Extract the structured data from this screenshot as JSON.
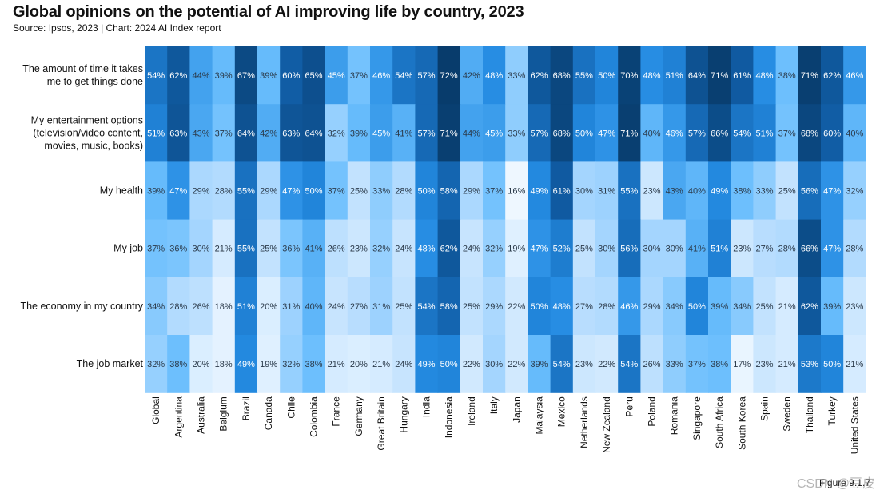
{
  "header": {
    "title": "Global opinions on the potential of AI improving life by country, 2023",
    "subtitle": "Source: Ipsos, 2023 | Chart: 2024 AI Index report"
  },
  "footer": {
    "figure_label": "Figure 9.1.7",
    "watermark": "CSDN @豆皮"
  },
  "colors": {
    "scale_low": "#eef7ff",
    "scale_high": "#083c6c",
    "text_dark": "#2b3a4a",
    "text_light": "#ffffff"
  },
  "chart_data": {
    "type": "heatmap",
    "title": "Global opinions on the potential of AI improving life by country, 2023",
    "value_format": "percent",
    "x_categories": [
      "Global",
      "Argentina",
      "Australia",
      "Belgium",
      "Brazil",
      "Canada",
      "Chile",
      "Colombia",
      "France",
      "Germany",
      "Great Britain",
      "Hungary",
      "India",
      "Indonesia",
      "Ireland",
      "Italy",
      "Japan",
      "Malaysia",
      "Mexico",
      "Netherlands",
      "New Zealand",
      "Peru",
      "Poland",
      "Romania",
      "Singapore",
      "South Africa",
      "South Korea",
      "Spain",
      "Sweden",
      "Thailand",
      "Turkey",
      "United States"
    ],
    "y_categories": [
      [
        "The amount of time it takes",
        "me to get things done"
      ],
      [
        "My entertainment options",
        "(television/video content,",
        "movies, music, books)"
      ],
      [
        "My health"
      ],
      [
        "My job"
      ],
      [
        "The economy in my country"
      ],
      [
        "The job market"
      ]
    ],
    "values": [
      [
        54,
        62,
        44,
        39,
        67,
        39,
        60,
        65,
        45,
        37,
        46,
        54,
        57,
        72,
        42,
        48,
        33,
        62,
        68,
        55,
        50,
        70,
        48,
        51,
        64,
        71,
        61,
        48,
        38,
        71,
        62,
        46
      ],
      [
        51,
        63,
        43,
        37,
        64,
        42,
        63,
        64,
        32,
        39,
        45,
        41,
        57,
        71,
        44,
        45,
        33,
        57,
        68,
        50,
        47,
        71,
        40,
        46,
        57,
        66,
        54,
        51,
        37,
        68,
        60,
        40
      ],
      [
        39,
        47,
        29,
        28,
        55,
        29,
        47,
        50,
        37,
        25,
        33,
        28,
        50,
        58,
        29,
        37,
        16,
        49,
        61,
        30,
        31,
        55,
        23,
        43,
        40,
        49,
        38,
        33,
        25,
        56,
        47,
        32
      ],
      [
        37,
        36,
        30,
        21,
        55,
        25,
        36,
        41,
        26,
        23,
        32,
        24,
        48,
        62,
        24,
        32,
        19,
        47,
        52,
        25,
        30,
        56,
        30,
        30,
        41,
        51,
        23,
        27,
        28,
        66,
        47,
        28
      ],
      [
        34,
        28,
        26,
        18,
        51,
        20,
        31,
        40,
        24,
        27,
        31,
        25,
        54,
        58,
        25,
        29,
        22,
        50,
        48,
        27,
        28,
        46,
        29,
        34,
        50,
        39,
        34,
        25,
        21,
        62,
        39,
        23
      ],
      [
        32,
        38,
        20,
        18,
        49,
        19,
        32,
        38,
        21,
        20,
        21,
        24,
        49,
        50,
        22,
        30,
        22,
        39,
        54,
        23,
        22,
        54,
        26,
        33,
        37,
        38,
        17,
        23,
        21,
        53,
        50,
        21
      ]
    ],
    "xlabel": "",
    "ylabel": "",
    "legend": "none",
    "grid": false
  }
}
